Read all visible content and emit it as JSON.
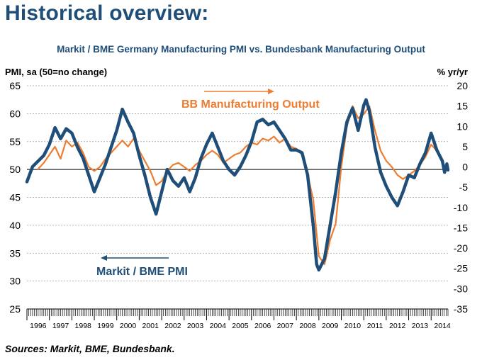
{
  "page_title": "Historical overview:",
  "source": "Sources: Markit, BME, Bundesbank.",
  "colors": {
    "pmi": "#1f4e79",
    "output": "#ed7d31",
    "title": "#1f4e79"
  },
  "chart_data": {
    "type": "line",
    "title": "Markit / BME Germany Manufacturing PMI vs. Bundesbank Manufacturing Output",
    "left_axis_label": "PMI, sa (50=no change)",
    "right_axis_label": "% yr/yr",
    "left_ylim": [
      25,
      65
    ],
    "left_ticks": [
      25,
      30,
      35,
      40,
      45,
      50,
      55,
      60,
      65
    ],
    "right_ylim": [
      -35,
      20
    ],
    "right_ticks": [
      -35,
      -30,
      -25,
      -20,
      -15,
      -10,
      -5,
      0,
      5,
      10,
      15,
      20
    ],
    "x_range": [
      1996,
      2014.75
    ],
    "x_tick_labels": [
      "1996",
      "1997",
      "1998",
      "1999",
      "2000",
      "2001",
      "2002",
      "2003",
      "2004",
      "2005",
      "2006",
      "2007",
      "2008",
      "2009",
      "2010",
      "2011",
      "2012",
      "2013",
      "2014"
    ],
    "grid": "horizontal dashed",
    "series": [
      {
        "name": "Markit / BME PMI",
        "axis": "left",
        "points": [
          [
            1996.0,
            47.8
          ],
          [
            1996.25,
            50.5
          ],
          [
            1996.5,
            51.5
          ],
          [
            1996.75,
            52.5
          ],
          [
            1997.0,
            54.5
          ],
          [
            1997.25,
            57.5
          ],
          [
            1997.5,
            55.5
          ],
          [
            1997.75,
            57.3
          ],
          [
            1998.0,
            56.5
          ],
          [
            1998.25,
            54.0
          ],
          [
            1998.5,
            52.0
          ],
          [
            1998.75,
            49.0
          ],
          [
            1999.0,
            46.0
          ],
          [
            1999.25,
            48.5
          ],
          [
            1999.5,
            51.0
          ],
          [
            1999.75,
            54.0
          ],
          [
            2000.0,
            57.0
          ],
          [
            2000.25,
            60.8
          ],
          [
            2000.5,
            58.5
          ],
          [
            2000.75,
            56.5
          ],
          [
            2001.0,
            52.5
          ],
          [
            2001.25,
            49.0
          ],
          [
            2001.5,
            45.0
          ],
          [
            2001.75,
            42.0
          ],
          [
            2002.0,
            46.0
          ],
          [
            2002.25,
            50.0
          ],
          [
            2002.5,
            48.0
          ],
          [
            2002.75,
            47.0
          ],
          [
            2003.0,
            48.5
          ],
          [
            2003.25,
            46.0
          ],
          [
            2003.5,
            48.5
          ],
          [
            2003.75,
            52.0
          ],
          [
            2004.0,
            54.5
          ],
          [
            2004.25,
            56.5
          ],
          [
            2004.5,
            54.0
          ],
          [
            2004.75,
            51.5
          ],
          [
            2005.0,
            50.0
          ],
          [
            2005.25,
            49.0
          ],
          [
            2005.5,
            50.5
          ],
          [
            2005.75,
            52.5
          ],
          [
            2006.0,
            55.0
          ],
          [
            2006.25,
            58.5
          ],
          [
            2006.5,
            59.0
          ],
          [
            2006.75,
            58.0
          ],
          [
            2007.0,
            58.5
          ],
          [
            2007.25,
            57.0
          ],
          [
            2007.5,
            55.5
          ],
          [
            2007.75,
            53.5
          ],
          [
            2008.0,
            53.5
          ],
          [
            2008.25,
            53.0
          ],
          [
            2008.5,
            49.0
          ],
          [
            2008.75,
            40.0
          ],
          [
            2008.9,
            33.0
          ],
          [
            2009.0,
            32.0
          ],
          [
            2009.25,
            34.0
          ],
          [
            2009.5,
            40.0
          ],
          [
            2009.75,
            46.0
          ],
          [
            2010.0,
            53.0
          ],
          [
            2010.25,
            58.5
          ],
          [
            2010.5,
            61.0
          ],
          [
            2010.75,
            57.0
          ],
          [
            2011.0,
            61.5
          ],
          [
            2011.1,
            62.5
          ],
          [
            2011.25,
            60.5
          ],
          [
            2011.5,
            54.0
          ],
          [
            2011.75,
            49.5
          ],
          [
            2012.0,
            47.0
          ],
          [
            2012.25,
            45.0
          ],
          [
            2012.5,
            43.5
          ],
          [
            2012.75,
            46.0
          ],
          [
            2013.0,
            49.0
          ],
          [
            2013.25,
            48.5
          ],
          [
            2013.5,
            51.0
          ],
          [
            2013.75,
            53.0
          ],
          [
            2014.0,
            56.5
          ],
          [
            2014.25,
            53.5
          ],
          [
            2014.5,
            51.5
          ],
          [
            2014.6,
            49.5
          ],
          [
            2014.7,
            51.0
          ],
          [
            2014.75,
            49.9
          ]
        ]
      },
      {
        "name": "BB Manufacturing Output",
        "axis": "right",
        "points": [
          [
            1996.5,
            -0.5
          ],
          [
            1996.75,
            1.0
          ],
          [
            1997.0,
            3.0
          ],
          [
            1997.25,
            5.0
          ],
          [
            1997.5,
            2.0
          ],
          [
            1997.75,
            6.5
          ],
          [
            1998.0,
            5.0
          ],
          [
            1998.25,
            6.0
          ],
          [
            1998.5,
            3.5
          ],
          [
            1998.75,
            0.0
          ],
          [
            1999.0,
            -1.0
          ],
          [
            1999.25,
            0.0
          ],
          [
            1999.5,
            2.0
          ],
          [
            1999.75,
            3.5
          ],
          [
            2000.0,
            5.0
          ],
          [
            2000.25,
            6.5
          ],
          [
            2000.5,
            5.0
          ],
          [
            2000.75,
            7.0
          ],
          [
            2001.0,
            4.0
          ],
          [
            2001.25,
            1.5
          ],
          [
            2001.5,
            -1.0
          ],
          [
            2001.75,
            -4.5
          ],
          [
            2002.0,
            -3.5
          ],
          [
            2002.25,
            -1.0
          ],
          [
            2002.5,
            0.5
          ],
          [
            2002.75,
            1.0
          ],
          [
            2003.0,
            0.0
          ],
          [
            2003.25,
            -1.0
          ],
          [
            2003.5,
            0.5
          ],
          [
            2003.75,
            1.5
          ],
          [
            2004.0,
            3.0
          ],
          [
            2004.25,
            4.0
          ],
          [
            2004.5,
            3.0
          ],
          [
            2004.75,
            1.0
          ],
          [
            2005.0,
            2.0
          ],
          [
            2005.25,
            3.0
          ],
          [
            2005.5,
            3.5
          ],
          [
            2005.75,
            5.0
          ],
          [
            2006.0,
            6.0
          ],
          [
            2006.25,
            5.5
          ],
          [
            2006.5,
            7.0
          ],
          [
            2006.75,
            6.5
          ],
          [
            2007.0,
            7.5
          ],
          [
            2007.25,
            6.0
          ],
          [
            2007.5,
            7.0
          ],
          [
            2007.75,
            5.0
          ],
          [
            2008.0,
            4.5
          ],
          [
            2008.25,
            3.0
          ],
          [
            2008.5,
            -2.0
          ],
          [
            2008.75,
            -8.0
          ],
          [
            2009.0,
            -22.0
          ],
          [
            2009.25,
            -24.0
          ],
          [
            2009.5,
            -18.0
          ],
          [
            2009.75,
            -14.0
          ],
          [
            2010.0,
            0.0
          ],
          [
            2010.25,
            10.0
          ],
          [
            2010.5,
            15.0
          ],
          [
            2010.75,
            12.0
          ],
          [
            2011.0,
            13.0
          ],
          [
            2011.25,
            15.0
          ],
          [
            2011.5,
            9.0
          ],
          [
            2011.75,
            4.0
          ],
          [
            2012.0,
            1.5
          ],
          [
            2012.25,
            0.0
          ],
          [
            2012.5,
            -2.0
          ],
          [
            2012.75,
            -3.0
          ],
          [
            2013.0,
            -2.0
          ],
          [
            2013.25,
            -1.0
          ],
          [
            2013.5,
            0.5
          ],
          [
            2013.75,
            2.5
          ],
          [
            2014.0,
            5.5
          ],
          [
            2014.25,
            4.0
          ],
          [
            2014.5,
            1.0
          ],
          [
            2014.6,
            -1.0
          ],
          [
            2014.75,
            -0.5
          ]
        ]
      }
    ],
    "annotations": [
      {
        "text": "BB Manufacturing Output",
        "series": "BB Manufacturing Output",
        "arrow": "right"
      },
      {
        "text": "Markit / BME PMI",
        "series": "Markit / BME PMI",
        "arrow": "left"
      }
    ]
  }
}
